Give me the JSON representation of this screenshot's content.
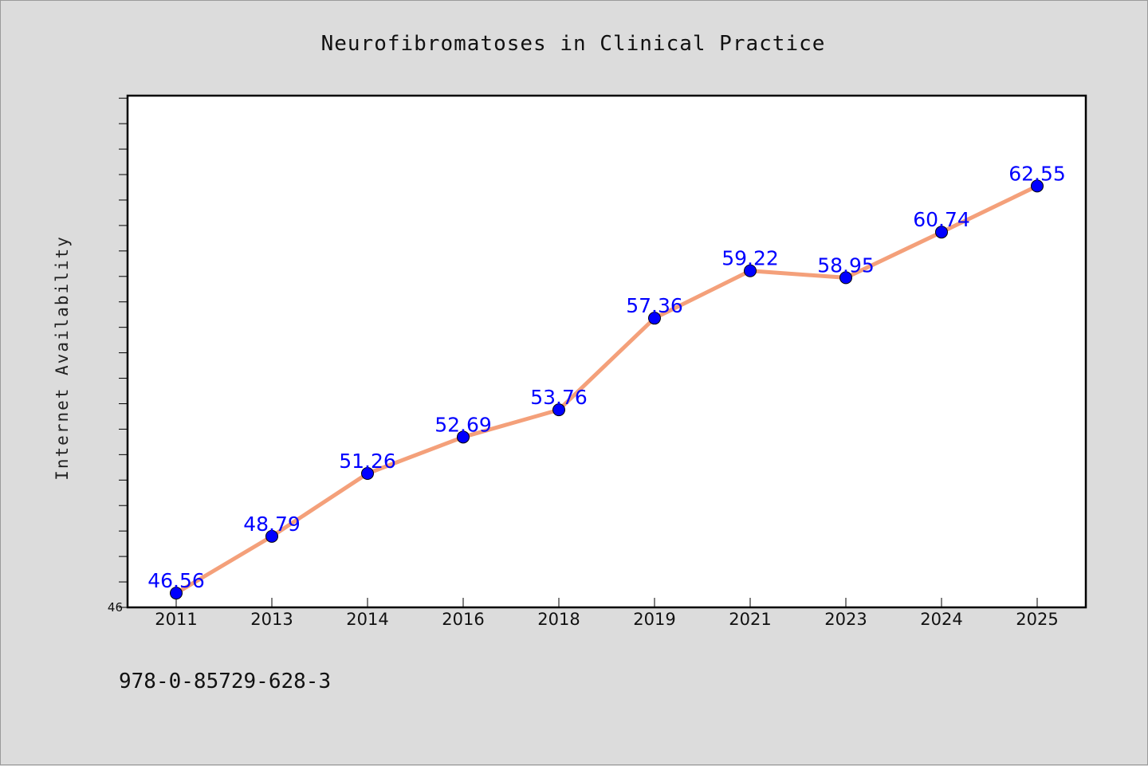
{
  "chart_data": {
    "type": "line",
    "title": "Neurofibromatoses in Clinical Practice",
    "ylabel": "Internet Availability",
    "xlabel": "",
    "categories": [
      "2011",
      "2013",
      "2014",
      "2016",
      "2018",
      "2019",
      "2021",
      "2023",
      "2024",
      "2025"
    ],
    "series": [
      {
        "values": [
          46.56,
          48.79,
          51.26,
          52.69,
          53.76,
          57.36,
          59.22,
          58.95,
          60.74,
          62.55
        ],
        "labels": [
          "46.56",
          "48.79",
          "51.26",
          "52.69",
          "53.76",
          "57.36",
          "59.22",
          "58.95",
          "60.74",
          "62.55"
        ]
      }
    ],
    "ylim": [
      46,
      66.1
    ],
    "y_tick_labels": [
      "46"
    ],
    "grid": false,
    "colors": {
      "line": "#f4a07a",
      "marker": "#0000ff",
      "data_label": "#0000ff",
      "background": "#dcdcdc",
      "plot_area": "#ffffff"
    }
  },
  "footer": {
    "isbn": "978-0-85729-628-3"
  }
}
